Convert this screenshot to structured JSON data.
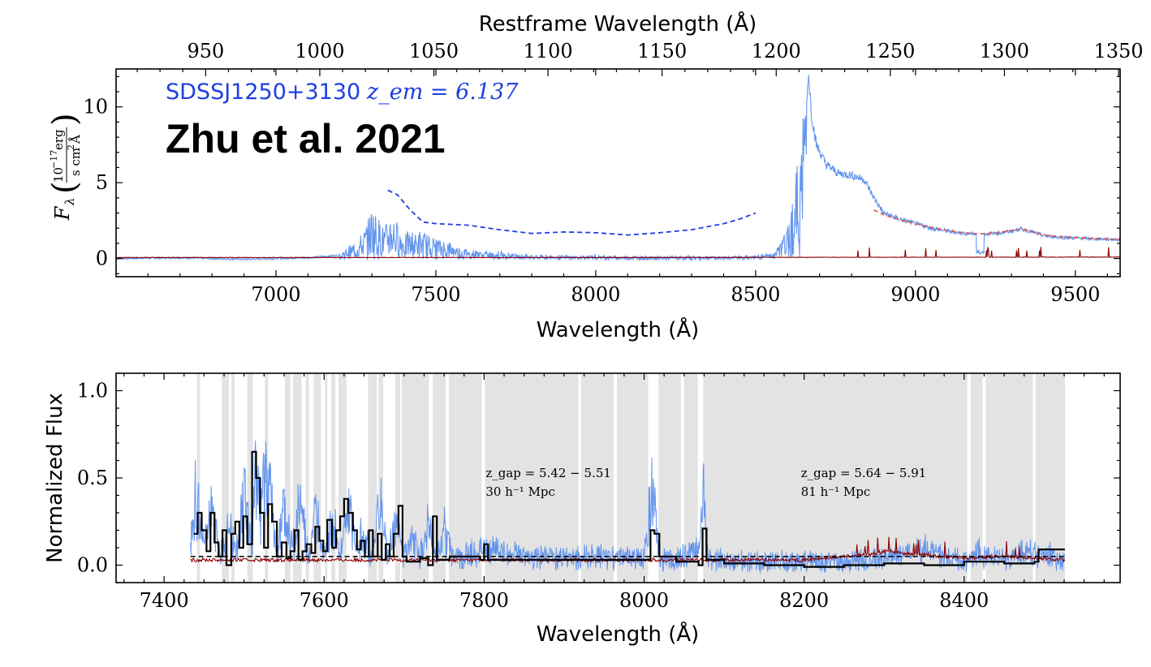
{
  "chart_data": [
    {
      "type": "line",
      "panel": "top",
      "title": "",
      "annotation_object": "SDSSJ1250+3130",
      "annotation_redshift": "z_em = 6.137",
      "annotation_reference": "Zhu et al. 2021",
      "xlabel": "Wavelength (Å)",
      "xlabel_top": "Restframe Wavelength (Å)",
      "ylabel": "F_λ (10^−17 erg / s cm² Å)",
      "ylabel_parts": {
        "symbol": "F",
        "sub": "λ",
        "num": "10",
        "num_exp": "−17",
        "num_unit": "erg",
        "den": "s cm",
        "den_exp": "2",
        "den_unit": "Å"
      },
      "xlim": [
        6500,
        9640
      ],
      "ylim": [
        -1.2,
        12.5
      ],
      "xticks": [
        7000,
        7500,
        8000,
        8500,
        9000,
        9500
      ],
      "yticks": [
        0,
        5,
        10
      ],
      "top_xticks": [
        950,
        1000,
        1050,
        1100,
        1150,
        1200,
        1250,
        1300,
        1350
      ],
      "z_em": 6.137,
      "colors": {
        "flux": "#6495ED",
        "error": "#8B0000",
        "model": "#1f3fe0",
        "fit": "#e8483a"
      },
      "series": [
        {
          "kind": "flux",
          "x": [
            6500,
            6700,
            6900,
            7100,
            7200,
            7250,
            7280,
            7300,
            7320,
            7340,
            7360,
            7400,
            7450,
            7500,
            7600,
            7700,
            7800,
            7900,
            8000,
            8100,
            8200,
            8300,
            8400,
            8500,
            8560,
            8600,
            8620,
            8640,
            8655,
            8665,
            8675,
            8690,
            8720,
            8760,
            8800,
            8840,
            8870,
            8900,
            8950,
            9000,
            9050,
            9100,
            9150,
            9200,
            9250,
            9300,
            9330,
            9350,
            9400,
            9450,
            9500,
            9550,
            9640
          ],
          "y": [
            0.0,
            0.05,
            -0.05,
            0.05,
            0.2,
            0.8,
            1.5,
            2.5,
            2.0,
            1.5,
            2.2,
            1.2,
            1.3,
            1.0,
            0.4,
            0.3,
            0.15,
            0.1,
            0.1,
            0.05,
            0.05,
            0.05,
            0.05,
            0.1,
            0.3,
            1.5,
            3.5,
            5.5,
            8.0,
            12.3,
            9.5,
            7.5,
            6.2,
            5.6,
            5.5,
            5.2,
            4.0,
            3.0,
            2.6,
            2.3,
            2.0,
            1.8,
            1.65,
            1.6,
            1.65,
            1.8,
            1.95,
            1.85,
            1.5,
            1.4,
            1.35,
            1.3,
            1.25
          ]
        },
        {
          "kind": "error",
          "x": [
            6500,
            7000,
            7500,
            8000,
            8500,
            9000,
            9640
          ],
          "y": [
            0.05,
            0.05,
            0.05,
            0.05,
            0.06,
            0.07,
            0.08
          ]
        },
        {
          "kind": "model",
          "style": "dashed",
          "x": [
            7350,
            7380,
            7420,
            7460,
            7500,
            7600,
            7700,
            7800,
            7900,
            8000,
            8100,
            8200,
            8300,
            8400,
            8450,
            8500
          ],
          "y": [
            4.5,
            4.2,
            3.2,
            2.4,
            2.3,
            2.2,
            1.9,
            1.65,
            1.75,
            1.7,
            1.55,
            1.7,
            1.9,
            2.3,
            2.6,
            3.0
          ]
        },
        {
          "kind": "fit",
          "style": "dashed",
          "x": [
            8870,
            8900,
            8950,
            9000,
            9050,
            9100,
            9150,
            9200,
            9250,
            9300,
            9330,
            9350,
            9400,
            9450,
            9500,
            9550,
            9640
          ],
          "y": [
            3.2,
            2.9,
            2.55,
            2.3,
            2.05,
            1.85,
            1.7,
            1.62,
            1.68,
            1.85,
            1.95,
            1.85,
            1.55,
            1.45,
            1.38,
            1.32,
            1.25
          ]
        }
      ]
    },
    {
      "type": "line",
      "panel": "bottom",
      "title": "",
      "xlabel": "Wavelength (Å)",
      "ylabel": "Normalized Flux",
      "xlim": [
        7340,
        8595
      ],
      "ylim": [
        -0.1,
        1.1
      ],
      "xticks": [
        7400,
        7600,
        7800,
        8000,
        8200,
        8400
      ],
      "yticks": [
        0.0,
        0.5,
        1.0
      ],
      "ytick_labels": [
        "0.0",
        "0.5",
        "1.0"
      ],
      "threshold": 0.05,
      "colors": {
        "flux": "#6495ED",
        "binned": "#000000",
        "error": "#8B0000",
        "gap": "#e3e3e3",
        "threshold": "#000000"
      },
      "gap_annotations": [
        {
          "x": 7802,
          "line1": "z_gap = 5.42 − 5.51",
          "line2": "30 h⁻¹ Mpc"
        },
        {
          "x": 8196,
          "line1": "z_gap = 5.64 − 5.91",
          "line2": "81 h⁻¹ Mpc"
        }
      ],
      "shaded_regions": [
        [
          7441,
          7445
        ],
        [
          7472,
          7481
        ],
        [
          7484,
          7488
        ],
        [
          7504,
          7511
        ],
        [
          7526,
          7530
        ],
        [
          7551,
          7558
        ],
        [
          7561,
          7572
        ],
        [
          7577,
          7581
        ],
        [
          7587,
          7596
        ],
        [
          7601,
          7604
        ],
        [
          7609,
          7614
        ],
        [
          7618,
          7628
        ],
        [
          7655,
          7666
        ],
        [
          7668,
          7674
        ],
        [
          7689,
          7695
        ],
        [
          7697,
          7731
        ],
        [
          7736,
          7752
        ],
        [
          7756,
          7797
        ],
        [
          7801,
          7918
        ],
        [
          7921,
          7962
        ],
        [
          7966,
          8005
        ],
        [
          8018,
          8046
        ],
        [
          8050,
          8067
        ],
        [
          8074,
          8404
        ],
        [
          8408,
          8423
        ],
        [
          8427,
          8486
        ],
        [
          8489,
          8526
        ]
      ],
      "series": [
        {
          "kind": "flux",
          "x": [
            7433,
            7440,
            7450,
            7460,
            7470,
            7480,
            7490,
            7500,
            7510,
            7515,
            7520,
            7530,
            7540,
            7550,
            7560,
            7570,
            7580,
            7590,
            7600,
            7610,
            7620,
            7630,
            7640,
            7650,
            7660,
            7670,
            7680,
            7690,
            7700,
            7710,
            7720,
            7730,
            7740,
            7750,
            7760,
            7780,
            7800,
            7850,
            7900,
            7950,
            8000,
            8010,
            8015,
            8020,
            8030,
            8050,
            8070,
            8075,
            8080,
            8100,
            8150,
            8200,
            8250,
            8300,
            8350,
            8400,
            8420,
            8450,
            8490,
            8526
          ],
          "y": [
            0.1,
            0.45,
            0.12,
            0.4,
            0.05,
            0.25,
            0.1,
            0.45,
            0.05,
            0.75,
            0.35,
            0.6,
            0.1,
            0.35,
            0.1,
            0.4,
            0.05,
            0.3,
            0.1,
            0.3,
            0.05,
            0.35,
            0.1,
            0.2,
            0.05,
            0.4,
            0.05,
            0.3,
            0.05,
            0.2,
            0.05,
            0.3,
            0.05,
            0.25,
            0.05,
            0.06,
            0.1,
            0.05,
            0.05,
            0.05,
            0.05,
            0.45,
            0.25,
            0.05,
            0.03,
            0.05,
            0.12,
            0.52,
            0.05,
            0.03,
            0.02,
            0.02,
            0.02,
            0.04,
            0.1,
            0.02,
            0.08,
            0.03,
            0.1,
            0.02
          ]
        },
        {
          "kind": "binned",
          "step": true,
          "x": [
            7437,
            7442,
            7447,
            7453,
            7458,
            7463,
            7468,
            7473,
            7478,
            7484,
            7489,
            7494,
            7499,
            7504,
            7510,
            7515,
            7520,
            7525,
            7530,
            7535,
            7541,
            7547,
            7553,
            7558,
            7563,
            7568,
            7573,
            7578,
            7584,
            7589,
            7594,
            7599,
            7604,
            7610,
            7615,
            7620,
            7625,
            7630,
            7636,
            7641,
            7646,
            7651,
            7656,
            7661,
            7667,
            7672,
            7677,
            7682,
            7687,
            7693,
            7698,
            7703,
            7720,
            7730,
            7736,
            7741,
            7757,
            7795,
            7800,
            7805,
            7950,
            8008,
            8013,
            8019,
            8040,
            8068,
            8073,
            8078,
            8100,
            8150,
            8200,
            8250,
            8300,
            8350,
            8400,
            8450,
            8488,
            8493,
            8526
          ],
          "y": [
            0.18,
            0.3,
            0.2,
            0.08,
            0.3,
            0.13,
            0.05,
            0.2,
            0.0,
            0.18,
            0.25,
            0.1,
            0.28,
            0.12,
            0.65,
            0.5,
            0.3,
            0.1,
            0.35,
            0.25,
            0.05,
            0.13,
            0.04,
            0.08,
            0.2,
            0.03,
            0.08,
            0.12,
            0.07,
            0.22,
            0.14,
            0.08,
            0.26,
            0.1,
            0.2,
            0.28,
            0.38,
            0.3,
            0.2,
            0.09,
            0.14,
            0.05,
            0.2,
            0.05,
            0.18,
            0.03,
            0.12,
            0.05,
            0.18,
            0.34,
            0.05,
            0.02,
            0.04,
            0.0,
            0.28,
            0.03,
            0.05,
            0.03,
            0.12,
            0.03,
            0.03,
            0.2,
            0.18,
            0.05,
            0.02,
            0.0,
            0.21,
            0.03,
            0.01,
            0.0,
            -0.01,
            0.0,
            0.01,
            0.0,
            0.02,
            0.01,
            0.02,
            0.09,
            0.01
          ]
        },
        {
          "kind": "error",
          "x": [
            7433,
            7600,
            7800,
            8000,
            8200,
            8280,
            8300,
            8350,
            8400,
            8450,
            8526
          ],
          "y": [
            0.03,
            0.03,
            0.03,
            0.03,
            0.03,
            0.06,
            0.08,
            0.06,
            0.04,
            0.05,
            0.03
          ]
        }
      ]
    }
  ]
}
